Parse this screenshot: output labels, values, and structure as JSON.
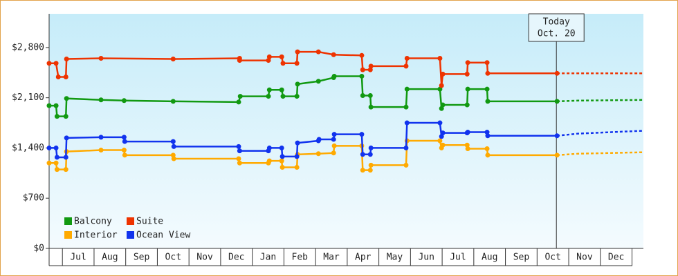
{
  "chart_data": {
    "type": "step-line",
    "ylim": [
      0,
      3270
    ],
    "yticks": [
      {
        "value": 0,
        "label": "$0"
      },
      {
        "value": 700,
        "label": "$700"
      },
      {
        "value": 1400,
        "label": "$1,400"
      },
      {
        "value": 2100,
        "label": "$2,100"
      },
      {
        "value": 2800,
        "label": "$2,800"
      }
    ],
    "xlim": [
      -0.42,
      18.36
    ],
    "xticks": [
      {
        "value": 0.5,
        "label": "Jul"
      },
      {
        "value": 1.5,
        "label": "Aug"
      },
      {
        "value": 2.5,
        "label": "Sep"
      },
      {
        "value": 3.5,
        "label": "Oct"
      },
      {
        "value": 4.5,
        "label": "Nov"
      },
      {
        "value": 5.5,
        "label": "Dec"
      },
      {
        "value": 6.5,
        "label": "Jan"
      },
      {
        "value": 7.5,
        "label": "Feb"
      },
      {
        "value": 8.5,
        "label": "Mar"
      },
      {
        "value": 9.5,
        "label": "Apr"
      },
      {
        "value": 10.5,
        "label": "May"
      },
      {
        "value": 11.5,
        "label": "Jun"
      },
      {
        "value": 12.5,
        "label": "Jul"
      },
      {
        "value": 13.5,
        "label": "Aug"
      },
      {
        "value": 14.5,
        "label": "Sep"
      },
      {
        "value": 15.5,
        "label": "Oct"
      },
      {
        "value": 16.5,
        "label": "Nov"
      },
      {
        "value": 17.5,
        "label": "Dec"
      }
    ],
    "annotation": {
      "text": [
        "Today",
        "Oct. 20"
      ],
      "x": 15.61
    },
    "legend": "bottom-left",
    "series": [
      {
        "name": "Balcony",
        "color": "#119911",
        "x": [
          -0.42,
          -0.2,
          -0.17,
          0.11,
          0.13,
          1.22,
          1.95,
          3.5,
          5.57,
          5.62,
          6.51,
          6.54,
          6.93,
          6.97,
          7.41,
          7.43,
          8.09,
          8.57,
          8.59,
          9.46,
          9.49,
          9.73,
          9.75,
          10.86,
          10.89,
          11.93,
          11.98,
          12.02,
          12.79,
          12.81,
          13.42,
          13.44,
          15.63
        ],
        "values": [
          1990,
          1990,
          1840,
          1840,
          2090,
          2070,
          2060,
          2050,
          2040,
          2120,
          2120,
          2210,
          2210,
          2120,
          2120,
          2290,
          2330,
          2380,
          2400,
          2400,
          2130,
          2130,
          1970,
          1970,
          2220,
          2220,
          1950,
          2000,
          2000,
          2220,
          2220,
          2050,
          2050
        ],
        "forecast_x": [
          15.63,
          16.3,
          18.36
        ],
        "forecast_values": [
          2050,
          2060,
          2070
        ]
      },
      {
        "name": "Suite",
        "color": "#ee3300",
        "x": [
          -0.42,
          -0.2,
          -0.13,
          0.11,
          0.13,
          1.22,
          3.5,
          5.6,
          5.6,
          6.51,
          6.54,
          6.93,
          6.97,
          7.41,
          7.43,
          8.09,
          8.57,
          9.46,
          9.49,
          9.73,
          9.75,
          10.86,
          10.89,
          11.93,
          11.98,
          12.02,
          12.79,
          12.81,
          13.42,
          13.44,
          15.63
        ],
        "values": [
          2580,
          2580,
          2390,
          2390,
          2640,
          2650,
          2640,
          2650,
          2620,
          2620,
          2670,
          2670,
          2580,
          2580,
          2740,
          2740,
          2700,
          2690,
          2490,
          2490,
          2540,
          2540,
          2650,
          2650,
          2270,
          2430,
          2430,
          2590,
          2590,
          2440,
          2440
        ],
        "forecast_x": [
          15.63,
          16.3,
          18.36
        ],
        "forecast_values": [
          2440,
          2440,
          2440
        ]
      },
      {
        "name": "Interior",
        "color": "#ffaa00",
        "x": [
          -0.42,
          -0.2,
          -0.17,
          0.11,
          0.13,
          1.22,
          1.95,
          1.97,
          3.5,
          3.52,
          5.57,
          5.6,
          6.51,
          6.54,
          6.93,
          6.95,
          7.41,
          7.43,
          8.09,
          8.57,
          8.59,
          9.46,
          9.49,
          9.73,
          9.75,
          10.86,
          10.89,
          11.93,
          11.98,
          12.02,
          12.79,
          12.81,
          13.42,
          13.44,
          15.63
        ],
        "values": [
          1190,
          1190,
          1100,
          1100,
          1350,
          1370,
          1370,
          1300,
          1300,
          1250,
          1250,
          1190,
          1190,
          1220,
          1220,
          1130,
          1130,
          1310,
          1320,
          1330,
          1430,
          1430,
          1090,
          1090,
          1160,
          1160,
          1500,
          1500,
          1400,
          1440,
          1440,
          1390,
          1390,
          1300,
          1300
        ],
        "forecast_x": [
          15.63,
          16.3,
          18.36
        ],
        "forecast_values": [
          1300,
          1320,
          1340
        ]
      },
      {
        "name": "Ocean View",
        "color": "#1133ee",
        "x": [
          -0.42,
          -0.2,
          -0.17,
          0.11,
          0.13,
          1.22,
          1.95,
          1.97,
          3.5,
          3.52,
          5.57,
          5.6,
          6.51,
          6.54,
          6.93,
          6.95,
          7.41,
          7.43,
          8.09,
          8.11,
          8.57,
          8.59,
          9.46,
          9.49,
          9.73,
          9.75,
          10.86,
          10.89,
          11.93,
          11.98,
          12.02,
          12.79,
          12.81,
          13.42,
          13.44,
          15.63
        ],
        "values": [
          1400,
          1400,
          1270,
          1270,
          1540,
          1550,
          1550,
          1490,
          1490,
          1420,
          1420,
          1360,
          1360,
          1400,
          1400,
          1280,
          1280,
          1470,
          1500,
          1520,
          1520,
          1590,
          1590,
          1310,
          1310,
          1400,
          1400,
          1750,
          1750,
          1560,
          1610,
          1610,
          1620,
          1620,
          1570,
          1570
        ],
        "forecast_x": [
          15.63,
          16.3,
          18.36
        ],
        "forecast_values": [
          1570,
          1600,
          1640
        ]
      }
    ]
  }
}
